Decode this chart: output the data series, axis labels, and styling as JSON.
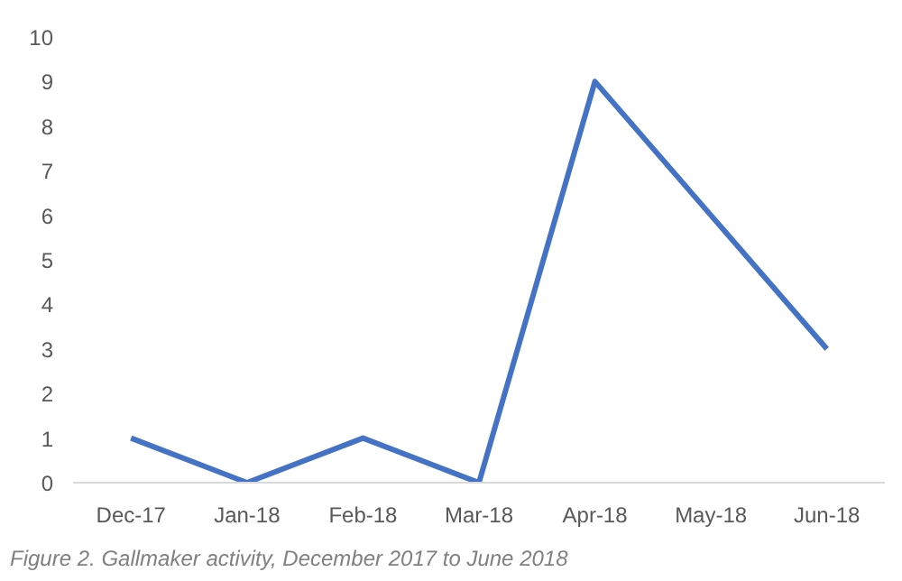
{
  "chart_data": {
    "type": "line",
    "categories": [
      "Dec-17",
      "Jan-18",
      "Feb-18",
      "Mar-18",
      "Apr-18",
      "May-18",
      "Jun-18"
    ],
    "series": [
      {
        "color": "#4472c4",
        "values": [
          1,
          0,
          1,
          0,
          9,
          6,
          3
        ]
      }
    ],
    "ylim": [
      0,
      10
    ],
    "yticks": [
      0,
      1,
      2,
      3,
      4,
      5,
      6,
      7,
      8,
      9,
      10
    ],
    "grid": false,
    "annotations": [
      "Figure 2. Gallmaker activity, December 2017 to June 2018"
    ]
  }
}
